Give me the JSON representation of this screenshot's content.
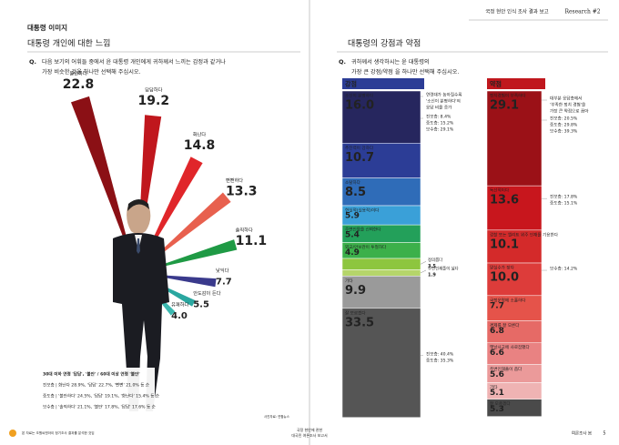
{
  "header": {
    "report": "국정 현안 인식 조사 결과 보고",
    "research": "Research #2"
  },
  "left": {
    "section": "대통령 이미지",
    "subtitle": "대통령 개인에 대한 느낌",
    "question_mark": "Q.",
    "question": [
      "다음 보기의 어휘들 중에서 윤 대통령 개인에게 귀하께서 느끼는 감정과 같거나",
      "가장 비슷한 것을 하나만 선택해 주십시오."
    ],
    "chart": {
      "type": "fan",
      "categories": [
        "불안하다",
        "답답하다",
        "화난다",
        "뻔뻔하다",
        "솔직하다",
        "낯익다",
        "안도감이 든다",
        "유쾌하다",
        "기타"
      ],
      "values": [
        22.8,
        19.2,
        14.8,
        13.3,
        11.1,
        7.7,
        5.5,
        4.0,
        1.8
      ],
      "value_labels": [
        "22.8",
        "19.2",
        "14.8",
        "13.3",
        "11.1",
        "7.7",
        "5.5",
        "4.0",
        "1.8"
      ],
      "colors": [
        "#8b1015",
        "#c0171d",
        "#e0262a",
        "#e8604e",
        "#1f9a45",
        "#3a3a8c",
        "#2aa7a0",
        "#3bb8b0",
        "#9a9a9a"
      ]
    },
    "notes": [
      "30대 이하 연령 '답답', '불안' / 60대 이상 연령 '불안'",
      "진보층 | 화난다 28.9%, '답답' 22.7%, '뻔뻔' 21.0% 등 순",
      "중도층 | '불안하다' 24.5%, '답답' 19.1%, '화난다' 15.4% 등 순",
      "보수층 | '솔직하다' 21.1%, '불안' 17.8%, '답답' 17.6% 등 순"
    ],
    "photo_credit": "사진자료: 연합뉴스"
  },
  "right": {
    "subtitle": "대통령의 강점과 약점",
    "question_mark": "Q.",
    "question": [
      "귀하께서 생각하시는 윤 대통령의",
      "가장 큰 강점/약점 을 하나만 선택해 주십시오."
    ],
    "strengths": {
      "type": "stacked-column",
      "title": "강점",
      "color": "#2c3d96",
      "categories": [
        "소신이 분명하다",
        "추진력이 강하다",
        "소탈하다",
        "현실적(실용적)이다",
        "주변인물을 신뢰한다",
        "외교/안보관이 투철하다",
        "정의롭다",
        "주변인재풀이 넓다",
        "기타",
        "잘 모르겠다"
      ],
      "values": [
        16.0,
        10.7,
        8.5,
        5.9,
        5.4,
        4.9,
        3.5,
        1.9,
        9.9,
        33.5
      ],
      "value_labels": [
        "16.0",
        "10.7",
        "8.5",
        "5.9",
        "5.4",
        "4.9",
        "3.5",
        "1.9",
        "9.9",
        "33.5"
      ],
      "colors": [
        "#26265e",
        "#2c3d96",
        "#2f6cb8",
        "#3aa0d8",
        "#23a05a",
        "#3cb04a",
        "#8dc63f",
        "#b5d56a",
        "#9a9a9a",
        "#555555"
      ],
      "annotations": [
        [
          "연령대가 높아질수록",
          "'소신이 분명하다'의",
          "응답 비율 증가"
        ],
        [
          "진보층: 8.4%",
          "중도층: 15.2%",
          "보수층: 29.1%"
        ],
        [
          "진보층: 40.4%",
          "중도층: 35.3%"
        ]
      ]
    },
    "weaknesses": {
      "type": "stacked-column",
      "title": "약점",
      "color": "#c0171d",
      "categories": [
        "정치경험이 부족하다",
        "독선적이다",
        "검찰 또는 엘리트 위주 인재를 기용한다",
        "말실수가 잦다",
        "국정운영에 소홀하다",
        "경제를 잘 모른다",
        "옛날사고에 사로잡혔다",
        "주변인재풀이 좁다",
        "기타",
        "잘 모르겠다"
      ],
      "values": [
        29.1,
        13.6,
        10.1,
        10.0,
        7.7,
        6.8,
        6.6,
        5.6,
        5.1,
        5.3
      ],
      "value_labels": [
        "29.1",
        "13.6",
        "10.1",
        "10.0",
        "7.7",
        "6.8",
        "6.6",
        "5.6",
        "5.1",
        "5.3"
      ],
      "colors": [
        "#9b1117",
        "#c8161d",
        "#d42a2a",
        "#dd3c3a",
        "#e5534a",
        "#e66a66",
        "#e98282",
        "#eb9a9a",
        "#efb3b3",
        "#4a4a4a"
      ],
      "annotations": [
        [
          "대부분 응답층에서",
          "'부족한 정치 경험'을",
          "가장 큰 약점으로 꼽아"
        ],
        [
          "진보층: 20.5%",
          "중도층: 29.8%",
          "보수층: 39.3%"
        ],
        [
          "진보층: 17.8%",
          "중도층: 15.1%"
        ],
        [
          "보수층: 14.2%"
        ]
      ]
    }
  },
  "footer": {
    "note": "본 자료는 조원씨앤아이 정기조사 결과를 분석한 것임",
    "center": [
      "국정 현안에 관한",
      "대국민 여론조사 보고서"
    ],
    "right": "여론조사 봄",
    "page": "5"
  }
}
